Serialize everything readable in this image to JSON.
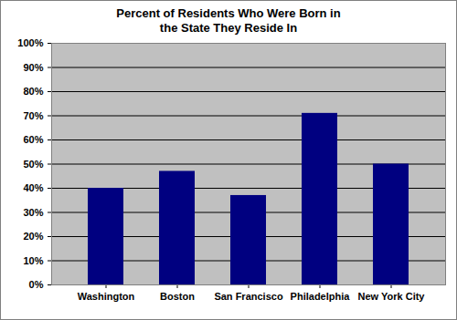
{
  "chart_data": {
    "type": "bar",
    "title": "Percent of Residents Who Were Born in the State They Reside In",
    "categories": [
      "Washington",
      "Boston",
      "San Francisco",
      "Philadelphia",
      "New York City"
    ],
    "values": [
      40,
      47,
      37,
      71,
      50
    ],
    "color": "#000080",
    "ylim": [
      0,
      100
    ],
    "yticks": [
      {
        "value": 0,
        "label": "0%"
      },
      {
        "value": 10,
        "label": "10%"
      },
      {
        "value": 20,
        "label": "20%"
      },
      {
        "value": 30,
        "label": "30%"
      },
      {
        "value": 40,
        "label": "40%"
      },
      {
        "value": 50,
        "label": "50%"
      },
      {
        "value": 60,
        "label": "60%"
      },
      {
        "value": 70,
        "label": "70%"
      },
      {
        "value": 80,
        "label": "80%"
      },
      {
        "value": 90,
        "label": "90%"
      },
      {
        "value": 100,
        "label": "100%"
      }
    ],
    "grid": true
  }
}
